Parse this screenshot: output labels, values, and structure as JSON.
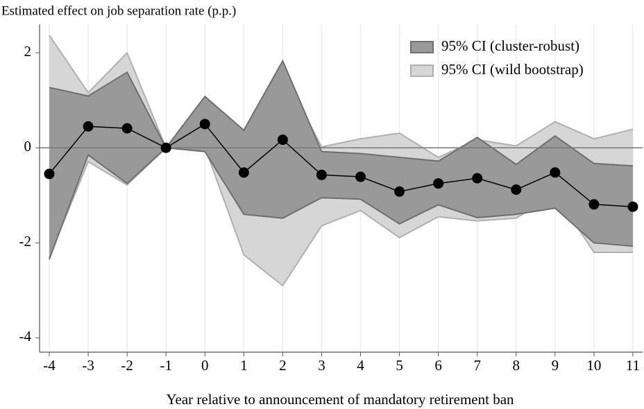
{
  "chart_data": {
    "type": "band-line",
    "title": "Estimated effect on job separation rate (p.p.)",
    "x_label": "Year relative to announcement of mandatory retirement ban",
    "x": [
      -4,
      -3,
      -2,
      -1,
      0,
      1,
      2,
      3,
      4,
      5,
      6,
      7,
      8,
      9,
      10,
      11
    ],
    "values": [
      -0.55,
      0.45,
      0.41,
      0,
      0.5,
      -0.52,
      0.17,
      -0.57,
      -0.61,
      -0.92,
      -0.75,
      -0.64,
      -0.88,
      -0.52,
      -1.19,
      -1.24
    ],
    "color": "#000000",
    "series": [
      {
        "name": "95% CI (cluster-robust)",
        "color": "#999999",
        "edge_color": "#6e6e6e",
        "upper": [
          1.27,
          1.09,
          1.59,
          0,
          1.08,
          0.37,
          1.83,
          -0.08,
          -0.12,
          -0.2,
          -0.28,
          0.22,
          -0.35,
          0.25,
          -0.33,
          -0.38
        ],
        "lower": [
          -2.35,
          -0.15,
          -0.75,
          0,
          -0.08,
          -1.4,
          -1.48,
          -1.05,
          -1.08,
          -1.6,
          -1.2,
          -1.47,
          -1.4,
          -1.27,
          -2.0,
          -2.07
        ]
      },
      {
        "name": "95% CI (wild bootstrap)",
        "color": "#d6d6d6",
        "edge_color": "#b0b0b0",
        "upper": [
          2.37,
          1.16,
          2.0,
          0,
          0.87,
          0.19,
          1.6,
          0.02,
          0.19,
          0.31,
          -0.2,
          0.17,
          0.04,
          0.55,
          0.19,
          0.39
        ],
        "lower": [
          -2.3,
          -0.29,
          -0.78,
          0,
          0.01,
          -2.25,
          -2.9,
          -1.64,
          -1.32,
          -1.89,
          -1.45,
          -1.54,
          -1.48,
          -0.97,
          -2.2,
          -2.2
        ]
      }
    ],
    "reference_line": 0,
    "xlim": [
      -4.25,
      11.25
    ],
    "xticks": [
      -4,
      -3,
      -2,
      -1,
      0,
      1,
      2,
      3,
      4,
      5,
      6,
      7,
      8,
      9,
      10,
      11
    ],
    "ylim": [
      -4.3,
      2.6
    ],
    "yticks": [
      -4,
      -2,
      0,
      2
    ],
    "grid": true,
    "legend": "top-right"
  }
}
